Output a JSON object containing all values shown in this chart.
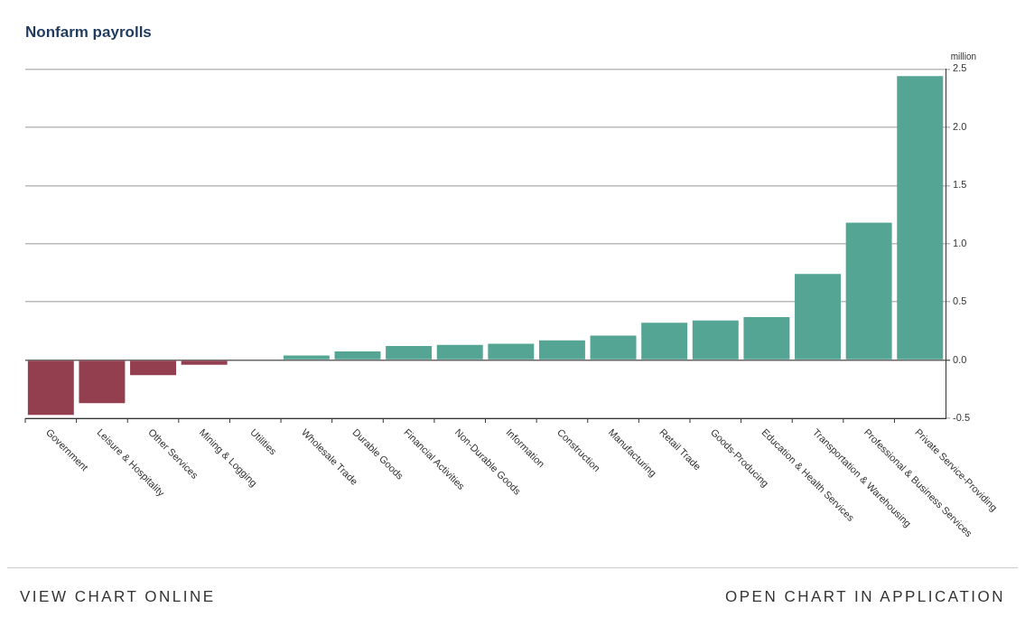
{
  "chart_data": {
    "type": "bar",
    "title": "Nonfarm payrolls",
    "ylabel": "million",
    "categories": [
      "Government",
      "Leisure & Hospitality",
      "Other Services",
      "Mining & Logging",
      "Utilities",
      "Wholesale Trade",
      "Durable Goods",
      "Financial Activities",
      "Non-Durable Goods",
      "Information",
      "Construction",
      "Manufacturing",
      "Retail Trade",
      "Goods-Producing",
      "Education & Health Services",
      "Transportation & Warehousing",
      "Professional & Business Services",
      "Private Service-Providing"
    ],
    "values": [
      -0.47,
      -0.37,
      -0.13,
      -0.04,
      null,
      0.04,
      0.075,
      0.12,
      0.13,
      0.14,
      0.17,
      0.21,
      0.32,
      0.34,
      0.37,
      0.74,
      1.18,
      2.44
    ],
    "colors": [
      "#943f50",
      "#943f50",
      "#943f50",
      "#943f50",
      "#55a594",
      "#55a594",
      "#55a594",
      "#55a594",
      "#55a594",
      "#55a594",
      "#55a594",
      "#55a594",
      "#55a594",
      "#55a594",
      "#55a594",
      "#55a594",
      "#55a594",
      "#55a594"
    ],
    "ylim": [
      -0.5,
      2.5
    ],
    "yticks": [
      {
        "value": -0.5,
        "label": "-0.5"
      },
      {
        "value": 0,
        "label": "0.0"
      },
      {
        "value": 0.5,
        "label": "0.5"
      },
      {
        "value": 1,
        "label": "1.0"
      },
      {
        "value": 1.5,
        "label": "1.5"
      },
      {
        "value": 2,
        "label": "2.0"
      },
      {
        "value": 2.5,
        "label": "2.5"
      }
    ],
    "grid": "y",
    "annotations": [
      "VIEW CHART ONLINE",
      "OPEN CHART IN APPLICATION"
    ]
  }
}
